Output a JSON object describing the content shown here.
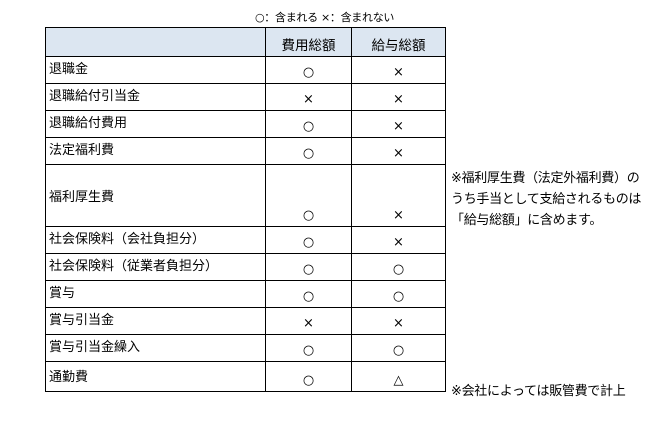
{
  "legend": "○：含まれる ×：含まれない",
  "table": {
    "headers": [
      "",
      "費用総額",
      "給与総額"
    ],
    "rows": [
      {
        "label": "退職金",
        "cost": "○",
        "salary": "×"
      },
      {
        "label": "退職給付引当金",
        "cost": "×",
        "salary": "×"
      },
      {
        "label": "退職給付費用",
        "cost": "○",
        "salary": "×"
      },
      {
        "label": "法定福利費",
        "cost": "○",
        "salary": "×"
      },
      {
        "label": "福利厚生費",
        "cost": "○",
        "salary": "×"
      },
      {
        "label": "社会保険料（会社負担分）",
        "cost": "○",
        "salary": "×"
      },
      {
        "label": "社会保険料（従業者負担分）",
        "cost": "○",
        "salary": "○"
      },
      {
        "label": "賞与",
        "cost": "○",
        "salary": "○"
      },
      {
        "label": "賞与引当金",
        "cost": "×",
        "salary": "×"
      },
      {
        "label": "賞与引当金繰入",
        "cost": "○",
        "salary": "○"
      },
      {
        "label": "通勤費",
        "cost": "○",
        "salary": "△"
      }
    ]
  },
  "notes": {
    "welfare": "※福利厚生費（法定外福利費）のうち手当として支給されるものは「給与総額」に含めます。",
    "commute": "※会社によっては販管費で計上"
  }
}
